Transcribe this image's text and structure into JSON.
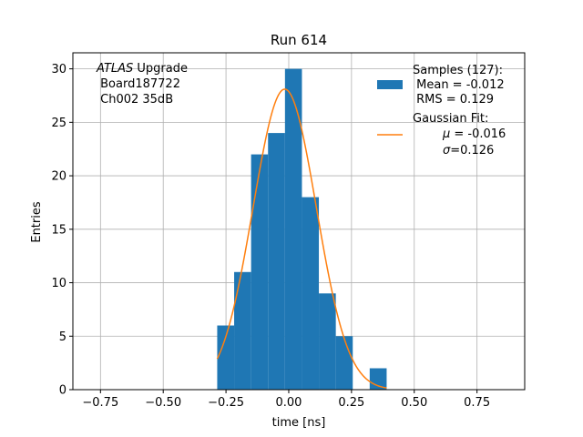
{
  "chart_data": {
    "type": "bar",
    "title": "Run 614",
    "xlabel": "time [ns]",
    "ylabel": "Entries",
    "xlim": [
      -0.86,
      0.94
    ],
    "ylim": [
      0,
      31.5
    ],
    "xticks": [
      -0.75,
      -0.5,
      -0.25,
      0.0,
      0.25,
      0.5,
      0.75
    ],
    "xtick_labels": [
      "−0.75",
      "−0.50",
      "−0.25",
      "0.00",
      "0.25",
      "0.50",
      "0.75"
    ],
    "yticks": [
      0,
      5,
      10,
      15,
      20,
      25,
      30
    ],
    "ytick_labels": [
      "0",
      "5",
      "10",
      "15",
      "20",
      "25",
      "30"
    ],
    "grid": true,
    "bin_width": 0.0675,
    "bins": [
      {
        "x_low": -0.285,
        "count": 6
      },
      {
        "x_low": -0.2175,
        "count": 11
      },
      {
        "x_low": -0.15,
        "count": 22
      },
      {
        "x_low": -0.0825,
        "count": 24
      },
      {
        "x_low": -0.015,
        "count": 30
      },
      {
        "x_low": 0.0525,
        "count": 18
      },
      {
        "x_low": 0.12,
        "count": 9
      },
      {
        "x_low": 0.1875,
        "count": 5
      },
      {
        "x_low": 0.255,
        "count": 0
      },
      {
        "x_low": 0.3225,
        "count": 2
      }
    ],
    "gaussian_fit": {
      "mu": -0.016,
      "sigma": 0.126,
      "amplitude": 28.1,
      "x_range": [
        -0.285,
        0.39
      ]
    },
    "colors": {
      "histogram": "#1f77b4",
      "fit": "#ff7f0e",
      "grid": "#b0b0b0"
    },
    "legend": {
      "placement": "top-right",
      "entries": [
        {
          "type": "histogram",
          "lines": [
            "Samples (127):",
            " Mean = -0.012",
            " RMS = 0.129"
          ]
        },
        {
          "type": "fit",
          "line1": "Gaussian Fit:",
          "mu_label": "μ",
          "mu_value": " = -0.016",
          "sigma_label": "σ",
          "sigma_value": "=0.126"
        }
      ]
    },
    "info_text": {
      "placement": "top-left",
      "experiment": "ATLAS",
      "line1_rest": " Upgrade",
      "line2": " Board187722",
      "line3": " Ch002 35dB"
    }
  }
}
